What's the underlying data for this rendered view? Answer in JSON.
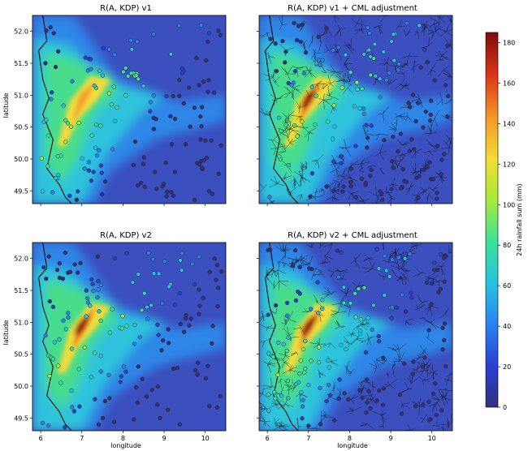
{
  "chart_data": [
    {
      "type": "heatmap",
      "title": "R(A, KDP) v1",
      "xlabel": "",
      "ylabel": "latitude",
      "xlim": [
        5.8,
        10.5
      ],
      "ylim": [
        49.3,
        52.25
      ],
      "xticks": [],
      "yticks": [
        "49.5",
        "50.0",
        "50.5",
        "51.0",
        "51.5",
        "52.0"
      ],
      "station_overlay": true,
      "cml_overlay": false,
      "peak_rainfall_mm": 150
    },
    {
      "type": "heatmap",
      "title": "R(A, KDP) v1 + CML adjustment",
      "xlabel": "",
      "ylabel": "",
      "xlim": [
        5.8,
        10.5
      ],
      "ylim": [
        49.3,
        52.25
      ],
      "xticks": [],
      "yticks": [],
      "station_overlay": true,
      "cml_overlay": true,
      "peak_rainfall_mm": 170
    },
    {
      "type": "heatmap",
      "title": "R(A, KDP) v2",
      "xlabel": "longitude",
      "ylabel": "latitude",
      "xlim": [
        5.8,
        10.5
      ],
      "ylim": [
        49.3,
        52.25
      ],
      "xticks": [
        "6",
        "7",
        "8",
        "9",
        "10"
      ],
      "yticks": [
        "49.5",
        "50.0",
        "50.5",
        "51.0",
        "51.5",
        "52.0"
      ],
      "station_overlay": true,
      "cml_overlay": false,
      "peak_rainfall_mm": 180
    },
    {
      "type": "heatmap",
      "title": "R(A, KDP) v2 + CML adjustment",
      "xlabel": "longitude",
      "ylabel": "",
      "xlim": [
        5.8,
        10.5
      ],
      "ylim": [
        49.3,
        52.25
      ],
      "xticks": [
        "6",
        "7",
        "8",
        "9",
        "10"
      ],
      "yticks": [],
      "station_overlay": true,
      "cml_overlay": true,
      "peak_rainfall_mm": 180
    }
  ],
  "colorbar": {
    "label": "24h rainfall sum (mm)",
    "ticks": [
      "0",
      "20",
      "40",
      "60",
      "80",
      "100",
      "120",
      "140",
      "160",
      "180"
    ],
    "range": [
      0,
      185
    ],
    "colormap": "jet"
  }
}
